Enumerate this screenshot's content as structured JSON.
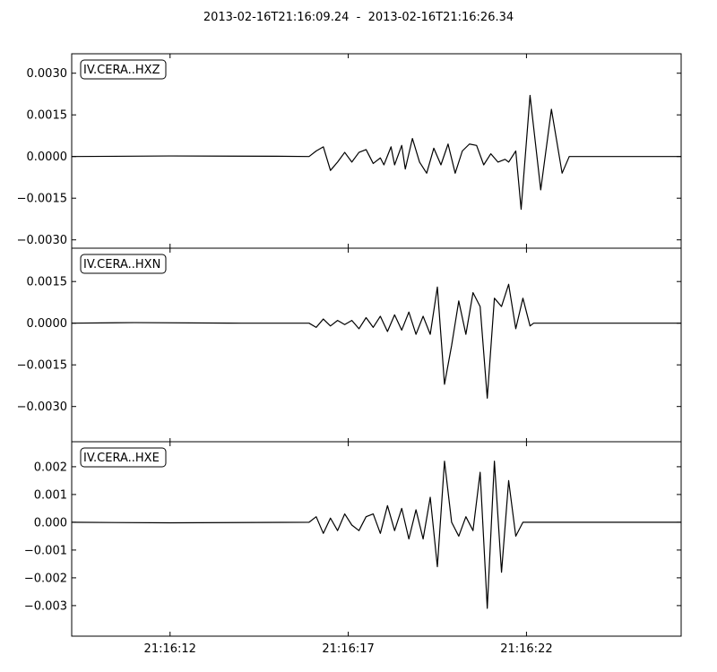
{
  "title": "2013-02-16T21:16:09.24  -  2013-02-16T21:16:26.34",
  "chart_data": {
    "type": "line",
    "x_ticks": [
      "21:16:12",
      "21:16:17",
      "21:16:22"
    ],
    "x_tick_seconds": [
      12,
      17,
      22
    ],
    "xlim_seconds": [
      9.24,
      26.34
    ],
    "panels": [
      {
        "name": "IV.CERA..HXZ",
        "ylim": [
          -0.0033,
          0.0037
        ],
        "yticks": [
          0.003,
          0.0015,
          0.0,
          -0.0015,
          -0.003
        ],
        "ytick_labels": [
          "0.0030",
          "0.0015",
          "0.0000",
          "−0.0015",
          "−0.0030"
        ],
        "points": [
          [
            9.24,
            0
          ],
          [
            12.0,
            2e-05
          ],
          [
            15.0,
            1e-05
          ],
          [
            15.9,
            0
          ],
          [
            16.1,
            0.0002
          ],
          [
            16.3,
            0.00035
          ],
          [
            16.5,
            -0.0005
          ],
          [
            16.7,
            -0.0002
          ],
          [
            16.9,
            0.00015
          ],
          [
            17.1,
            -0.0002
          ],
          [
            17.3,
            0.00015
          ],
          [
            17.5,
            0.00025
          ],
          [
            17.7,
            -0.00025
          ],
          [
            17.9,
            -5e-05
          ],
          [
            18.0,
            -0.0003
          ],
          [
            18.2,
            0.00035
          ],
          [
            18.3,
            -0.0003
          ],
          [
            18.5,
            0.0004
          ],
          [
            18.6,
            -0.00045
          ],
          [
            18.8,
            0.00065
          ],
          [
            19.0,
            -0.0002
          ],
          [
            19.2,
            -0.0006
          ],
          [
            19.4,
            0.0003
          ],
          [
            19.6,
            -0.0003
          ],
          [
            19.8,
            0.00045
          ],
          [
            20.0,
            -0.0006
          ],
          [
            20.2,
            0.0002
          ],
          [
            20.4,
            0.00045
          ],
          [
            20.6,
            0.0004
          ],
          [
            20.8,
            -0.0003
          ],
          [
            21.0,
            0.0001
          ],
          [
            21.2,
            -0.0002
          ],
          [
            21.4,
            -0.0001
          ],
          [
            21.5,
            -0.0002
          ],
          [
            21.7,
            0.0002
          ],
          [
            21.85,
            -0.0019
          ],
          [
            22.1,
            0.0022
          ],
          [
            22.4,
            -0.0012
          ],
          [
            22.7,
            0.0017
          ],
          [
            23.0,
            -0.0006
          ],
          [
            23.2,
            0.0
          ],
          [
            26.34,
            0.0
          ]
        ]
      },
      {
        "name": "IV.CERA..HXN",
        "ylim": [
          -0.0043,
          0.0027
        ],
        "yticks": [
          0.0015,
          0.0,
          -0.0015,
          -0.003
        ],
        "ytick_labels": [
          "0.0015",
          "0.0000",
          "−0.0015",
          "−0.0030"
        ],
        "points": [
          [
            9.24,
            0
          ],
          [
            11.0,
            2e-05
          ],
          [
            14.0,
            0.0
          ],
          [
            15.9,
            0.0
          ],
          [
            16.1,
            -0.00015
          ],
          [
            16.3,
            0.00015
          ],
          [
            16.5,
            -0.0001
          ],
          [
            16.7,
            0.0001
          ],
          [
            16.9,
            -5e-05
          ],
          [
            17.1,
            0.0001
          ],
          [
            17.3,
            -0.0002
          ],
          [
            17.5,
            0.0002
          ],
          [
            17.7,
            -0.00015
          ],
          [
            17.9,
            0.00025
          ],
          [
            18.1,
            -0.0003
          ],
          [
            18.3,
            0.0003
          ],
          [
            18.5,
            -0.00025
          ],
          [
            18.7,
            0.0004
          ],
          [
            18.9,
            -0.0004
          ],
          [
            19.1,
            0.00025
          ],
          [
            19.3,
            -0.0004
          ],
          [
            19.5,
            0.0013
          ],
          [
            19.7,
            -0.0022
          ],
          [
            19.9,
            -0.0008
          ],
          [
            20.1,
            0.0008
          ],
          [
            20.3,
            -0.0004
          ],
          [
            20.5,
            0.0011
          ],
          [
            20.7,
            0.0006
          ],
          [
            20.9,
            -0.0027
          ],
          [
            21.1,
            0.0009
          ],
          [
            21.3,
            0.0006
          ],
          [
            21.5,
            0.0014
          ],
          [
            21.7,
            -0.0002
          ],
          [
            21.9,
            0.0009
          ],
          [
            22.1,
            -0.0001
          ],
          [
            22.2,
            0.0
          ],
          [
            26.34,
            0.0
          ]
        ]
      },
      {
        "name": "IV.CERA..HXE",
        "ylim": [
          -0.0041,
          0.0029
        ],
        "yticks": [
          0.002,
          0.001,
          0.0,
          -0.001,
          -0.002,
          -0.003
        ],
        "ytick_labels": [
          "0.002",
          "0.001",
          "0.000",
          "−0.001",
          "−0.002",
          "−0.003"
        ],
        "points": [
          [
            9.24,
            0
          ],
          [
            12.0,
            -2e-05
          ],
          [
            15.9,
            0.0
          ],
          [
            16.1,
            0.0002
          ],
          [
            16.3,
            -0.0004
          ],
          [
            16.5,
            0.00015
          ],
          [
            16.7,
            -0.0003
          ],
          [
            16.9,
            0.0003
          ],
          [
            17.1,
            -0.0001
          ],
          [
            17.3,
            -0.0003
          ],
          [
            17.5,
            0.0002
          ],
          [
            17.7,
            0.0003
          ],
          [
            17.9,
            -0.0004
          ],
          [
            18.1,
            0.0006
          ],
          [
            18.3,
            -0.0003
          ],
          [
            18.5,
            0.0005
          ],
          [
            18.7,
            -0.0006
          ],
          [
            18.9,
            0.00045
          ],
          [
            19.1,
            -0.0006
          ],
          [
            19.3,
            0.0009
          ],
          [
            19.5,
            -0.0016
          ],
          [
            19.7,
            0.0022
          ],
          [
            19.9,
            0.0
          ],
          [
            20.1,
            -0.0005
          ],
          [
            20.3,
            0.0002
          ],
          [
            20.5,
            -0.0003
          ],
          [
            20.7,
            0.0018
          ],
          [
            20.9,
            -0.0031
          ],
          [
            21.1,
            0.0022
          ],
          [
            21.3,
            -0.0018
          ],
          [
            21.5,
            0.0015
          ],
          [
            21.7,
            -0.0005
          ],
          [
            21.9,
            0.0
          ],
          [
            26.34,
            0.0
          ]
        ]
      }
    ]
  }
}
